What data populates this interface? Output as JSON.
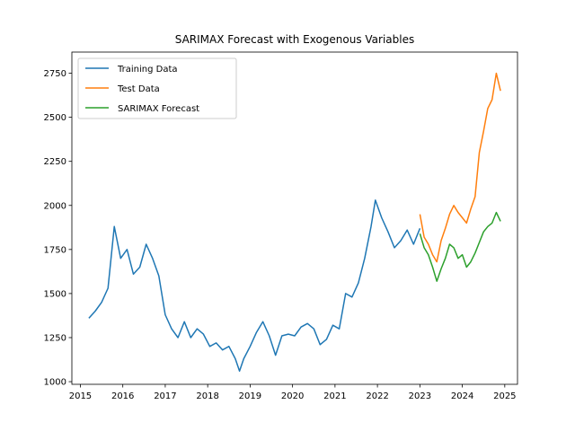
{
  "chart_data": {
    "type": "line",
    "title": "SARIMAX Forecast with Exogenous Variables",
    "xlabel": "",
    "ylabel": "",
    "xlim": [
      2014.8,
      2025.3
    ],
    "ylim": [
      985,
      2870
    ],
    "x_ticks": [
      2015,
      2016,
      2017,
      2018,
      2019,
      2020,
      2021,
      2022,
      2023,
      2024,
      2025
    ],
    "x_tick_labels": [
      "2015",
      "2016",
      "2017",
      "2018",
      "2019",
      "2020",
      "2021",
      "2022",
      "2023",
      "2024",
      "2025"
    ],
    "y_ticks": [
      1000,
      1250,
      1500,
      1750,
      2000,
      2250,
      2500,
      2750
    ],
    "y_tick_labels": [
      "1000",
      "1250",
      "1500",
      "1750",
      "2000",
      "2250",
      "2500",
      "2750"
    ],
    "grid": false,
    "legend_position": "top-left",
    "series": [
      {
        "name": "Training Data",
        "color": "#1f77b4",
        "x": [
          2015.2,
          2015.35,
          2015.5,
          2015.65,
          2015.8,
          2015.95,
          2016.1,
          2016.25,
          2016.4,
          2016.55,
          2016.7,
          2016.85,
          2017.0,
          2017.15,
          2017.3,
          2017.45,
          2017.6,
          2017.75,
          2017.9,
          2018.05,
          2018.2,
          2018.35,
          2018.5,
          2018.65,
          2018.75,
          2018.85,
          2019.0,
          2019.15,
          2019.3,
          2019.45,
          2019.6,
          2019.75,
          2019.9,
          2020.05,
          2020.2,
          2020.35,
          2020.5,
          2020.65,
          2020.8,
          2020.95,
          2021.1,
          2021.25,
          2021.4,
          2021.55,
          2021.7,
          2021.85,
          2021.95,
          2022.1,
          2022.25,
          2022.4,
          2022.55,
          2022.7,
          2022.85,
          2023.0
        ],
        "y": [
          1360,
          1400,
          1450,
          1530,
          1880,
          1700,
          1750,
          1610,
          1650,
          1780,
          1700,
          1600,
          1380,
          1300,
          1250,
          1340,
          1250,
          1300,
          1270,
          1200,
          1220,
          1180,
          1200,
          1130,
          1060,
          1130,
          1200,
          1280,
          1340,
          1260,
          1150,
          1260,
          1270,
          1260,
          1310,
          1330,
          1300,
          1210,
          1240,
          1320,
          1300,
          1500,
          1480,
          1560,
          1700,
          1880,
          2030,
          1930,
          1850,
          1760,
          1800,
          1860,
          1780,
          1870
        ]
      },
      {
        "name": "Test Data",
        "color": "#ff7f0e",
        "x": [
          2023.0,
          2023.1,
          2023.2,
          2023.3,
          2023.4,
          2023.5,
          2023.6,
          2023.7,
          2023.8,
          2023.9,
          2024.0,
          2024.1,
          2024.2,
          2024.3,
          2024.4,
          2024.5,
          2024.6,
          2024.7,
          2024.8,
          2024.9
        ],
        "y": [
          1950,
          1820,
          1780,
          1720,
          1680,
          1800,
          1870,
          1950,
          2000,
          1960,
          1930,
          1900,
          1980,
          2050,
          2300,
          2420,
          2550,
          2600,
          2750,
          2650
        ]
      },
      {
        "name": "SARIMAX Forecast",
        "color": "#2ca02c",
        "x": [
          2023.0,
          2023.1,
          2023.2,
          2023.3,
          2023.4,
          2023.5,
          2023.6,
          2023.7,
          2023.8,
          2023.9,
          2024.0,
          2024.1,
          2024.2,
          2024.3,
          2024.4,
          2024.5,
          2024.6,
          2024.7,
          2024.8,
          2024.9
        ],
        "y": [
          1840,
          1760,
          1720,
          1650,
          1570,
          1640,
          1700,
          1780,
          1760,
          1700,
          1720,
          1650,
          1680,
          1730,
          1790,
          1850,
          1880,
          1900,
          1960,
          1910
        ]
      }
    ]
  }
}
